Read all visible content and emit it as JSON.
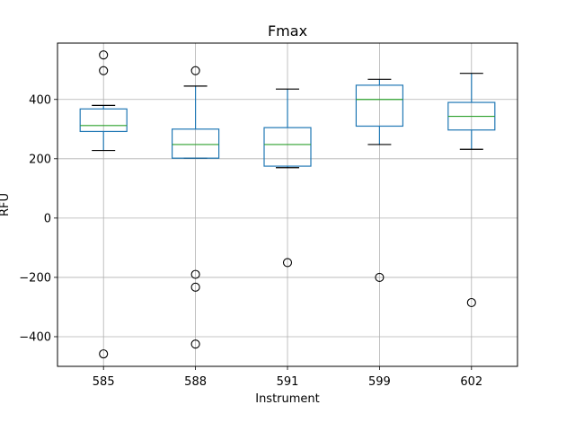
{
  "chart_data": {
    "type": "box",
    "title": "Fmax",
    "xlabel": "Instrument",
    "ylabel": "RFU",
    "ylim": [
      -500,
      590
    ],
    "yticks": [
      -400,
      -200,
      0,
      200,
      400
    ],
    "grid": true,
    "categories": [
      "585",
      "588",
      "591",
      "599",
      "602"
    ],
    "boxes": [
      {
        "category": "585",
        "whisker_low": 228,
        "q1": 292,
        "median": 312,
        "q3": 368,
        "whisker_high": 380,
        "outliers": [
          550,
          497,
          -458
        ]
      },
      {
        "category": "588",
        "whisker_low": 202,
        "q1": 202,
        "median": 248,
        "q3": 300,
        "whisker_high": 445,
        "outliers": [
          497,
          -190,
          -233,
          -425
        ]
      },
      {
        "category": "591",
        "whisker_low": 170,
        "q1": 175,
        "median": 248,
        "q3": 305,
        "whisker_high": 435,
        "outliers": [
          -150
        ]
      },
      {
        "category": "599",
        "whisker_low": 248,
        "q1": 310,
        "median": 400,
        "q3": 448,
        "whisker_high": 468,
        "outliers": [
          -200
        ]
      },
      {
        "category": "602",
        "whisker_low": 232,
        "q1": 297,
        "median": 343,
        "q3": 390,
        "whisker_high": 488,
        "outliers": [
          -285
        ]
      }
    ]
  },
  "colors": {
    "box": "#1f77b4",
    "median": "#2ca02c",
    "whisker_cap": "#000000",
    "grid": "#b0b0b0",
    "outlier": "#000000"
  }
}
